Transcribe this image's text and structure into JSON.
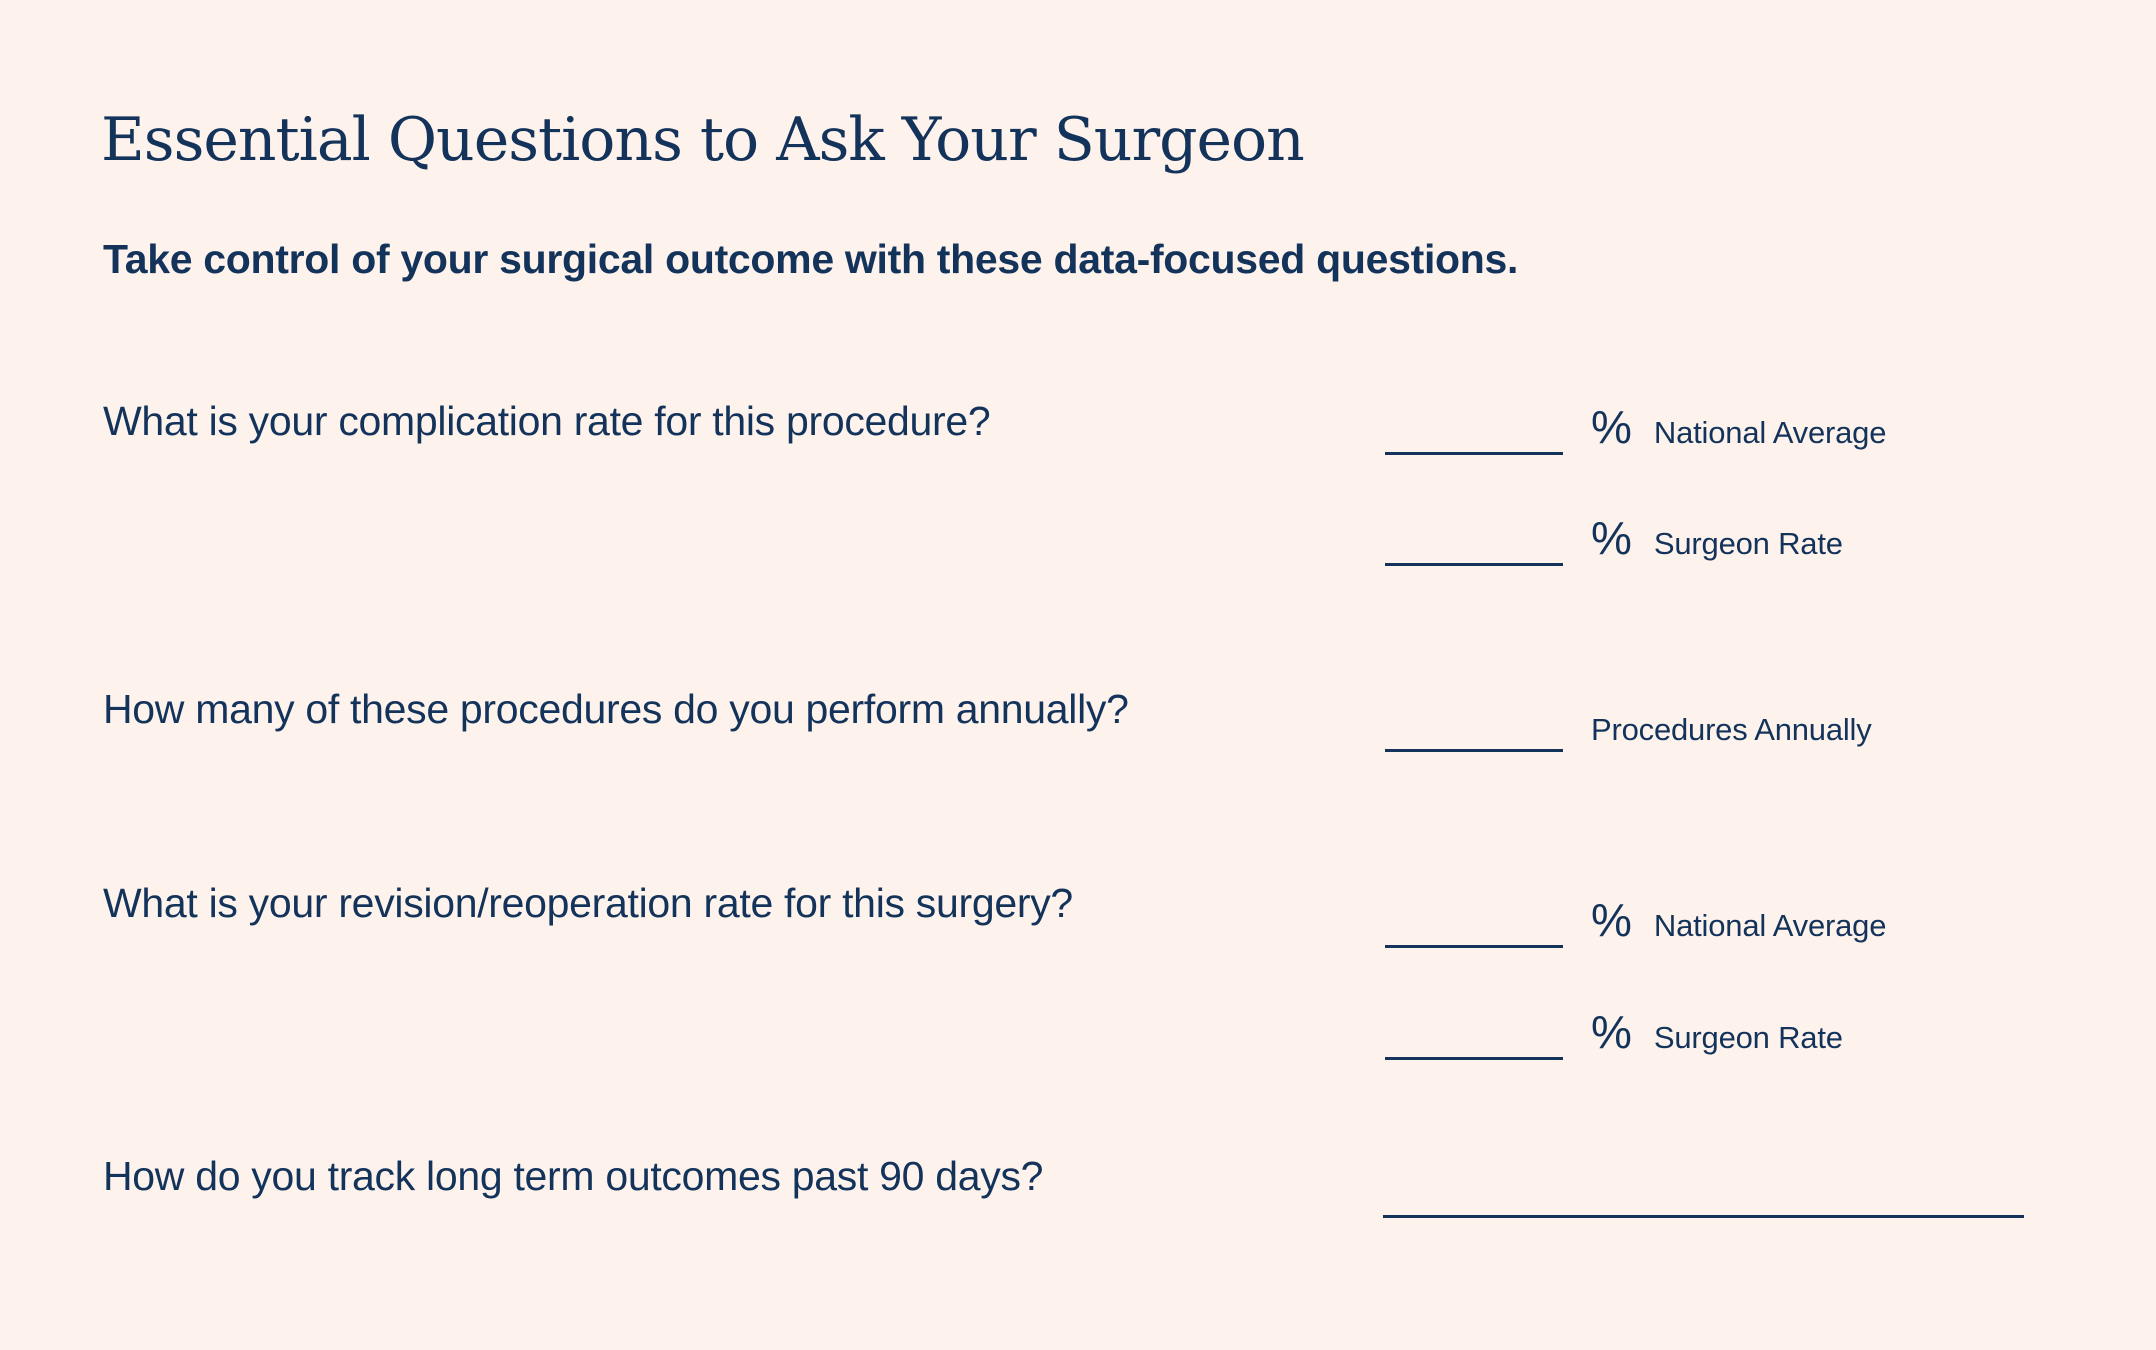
{
  "page": {
    "background_color": "#FDF3EC",
    "text_color": "#14335B"
  },
  "header": {
    "title": "Essential Questions to Ask Your Surgeon",
    "subtitle": "Take control of your surgical outcome with these data-focused questions."
  },
  "questions": [
    {
      "text": "What is your complication rate for this procedure?",
      "answers": [
        {
          "unit": "%",
          "label": "National Average"
        },
        {
          "unit": "%",
          "label": "Surgeon Rate"
        }
      ]
    },
    {
      "text": "How many of these procedures do you perform annually?",
      "answers": [
        {
          "unit": "",
          "label": "Procedures Annually"
        }
      ]
    },
    {
      "text": "What is your revision/reoperation rate for this surgery?",
      "answers": [
        {
          "unit": "%",
          "label": "National Average"
        },
        {
          "unit": "%",
          "label": "Surgeon Rate"
        }
      ]
    },
    {
      "text": "How do you track long term outcomes past 90 days?",
      "answers": [
        {
          "unit": "",
          "label": "",
          "style": "long-line"
        }
      ]
    }
  ]
}
